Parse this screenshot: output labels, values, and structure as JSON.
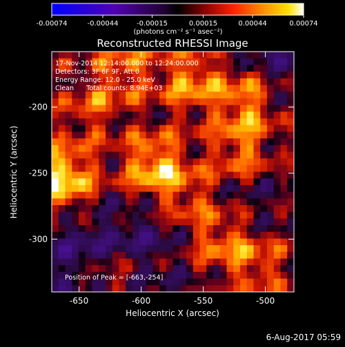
{
  "colorbar": {
    "tick_labels": [
      "-0.00074",
      "-0.00044",
      "-0.00015",
      "0.00015",
      "0.00044",
      "0.00074"
    ],
    "tick_values": [
      -0.00074,
      -0.00044,
      -0.00015,
      0.00015,
      0.00044,
      0.00074
    ],
    "range": [
      -0.00074,
      0.00074
    ],
    "unit_label": "(photons cm⁻² s⁻¹ asec⁻²)",
    "negative_colors": [
      "#0000ff",
      "#3f00c0",
      "#7f0080",
      "#000000"
    ],
    "positive_colors": [
      "#000000",
      "#800000",
      "#ff2000",
      "#ff8000",
      "#ffd000",
      "#ffffff"
    ]
  },
  "chart_data": {
    "type": "heatmap",
    "title": "Reconstructed RHESSI Image",
    "xlabel": "Heliocentric X (arcsec)",
    "ylabel": "Heliocentric Y (arcsec)",
    "xlim": [
      -672,
      -477
    ],
    "ylim": [
      -340,
      -158
    ],
    "x_ticks": [
      -650,
      -600,
      -550,
      -500
    ],
    "y_ticks": [
      -200,
      -250,
      -300
    ],
    "x_tick_labels": [
      "-650",
      "-600",
      "-550",
      "-500"
    ],
    "y_tick_labels": [
      "-200",
      "-250",
      "-300"
    ],
    "annotations": [
      "17-Nov-2014 12:14:00.000 to 12:24:00.000",
      "Detectors: 3F 6F 9F, Att 0",
      "Energy Range: 12.0 - 25.0 keV",
      "Clean      Total counts: 8.94E+03"
    ],
    "peak_label": "Position of Peak = [-663,-254]",
    "peak": [
      -663,
      -254
    ],
    "hot_spots": [
      {
        "x": -663,
        "y": -254,
        "intensity": 0.00074
      },
      {
        "x": -590,
        "y": -245,
        "intensity": 0.00062
      },
      {
        "x": -560,
        "y": -180,
        "intensity": 0.0005
      },
      {
        "x": -515,
        "y": -195,
        "intensity": 0.00048
      },
      {
        "x": -520,
        "y": -235,
        "intensity": 0.00044
      },
      {
        "x": -535,
        "y": -300,
        "intensity": 0.00042
      },
      {
        "x": -612,
        "y": -170,
        "intensity": 0.00038
      },
      {
        "x": -505,
        "y": -320,
        "intensity": 0.00036
      },
      {
        "x": -640,
        "y": -200,
        "intensity": 0.00032
      },
      {
        "x": -560,
        "y": -268,
        "intensity": 0.0003
      },
      {
        "x": -625,
        "y": -330,
        "intensity": 0.00028
      }
    ],
    "cold_spots": [
      {
        "x": -650,
        "y": -310,
        "intensity": -0.0003
      },
      {
        "x": -600,
        "y": -300,
        "intensity": -0.00022
      },
      {
        "x": -490,
        "y": -165,
        "intensity": -0.0002
      },
      {
        "x": -520,
        "y": -270,
        "intensity": -0.00018
      }
    ]
  },
  "footer": {
    "timestamp": "6-Aug-2017 05:59"
  }
}
